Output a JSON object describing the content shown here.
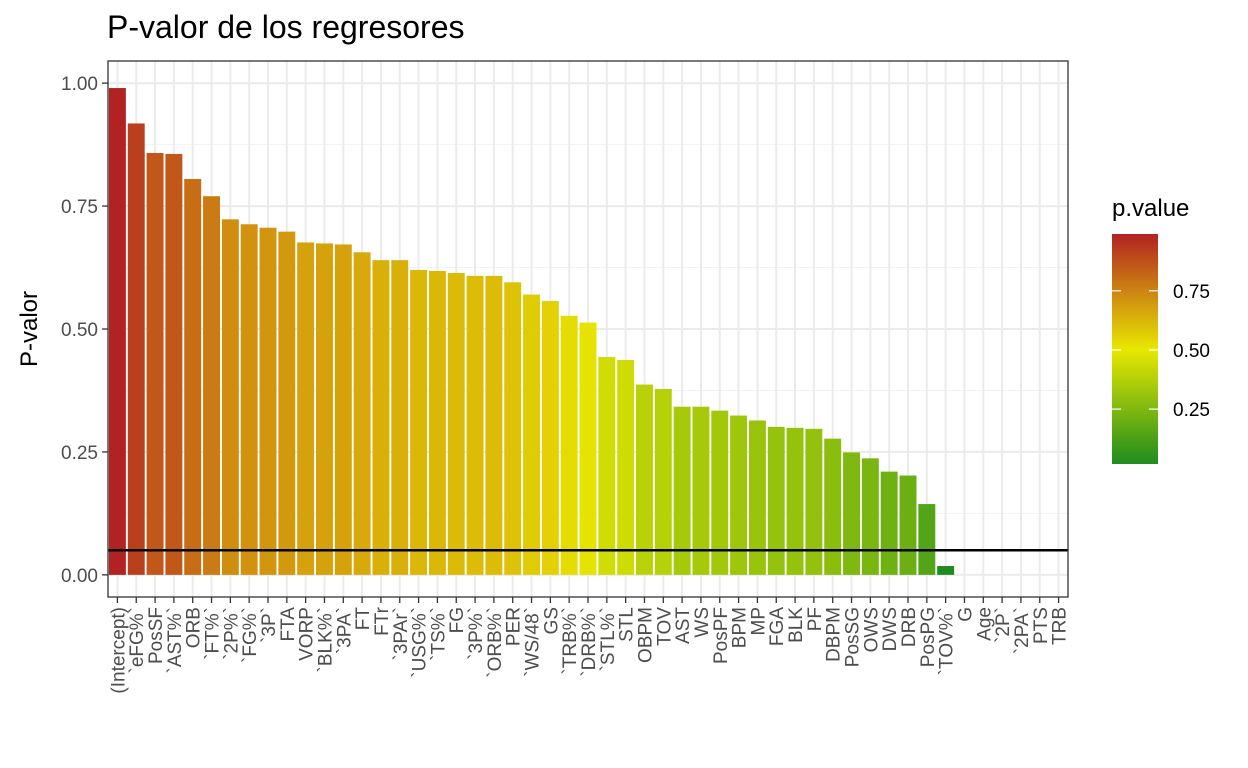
{
  "chart_data": {
    "type": "bar",
    "title": "P-valor de los regresores",
    "xlabel": "",
    "ylabel": "P-valor",
    "ylim": [
      -0.045,
      1.045
    ],
    "yticks": [
      0.0,
      0.25,
      0.5,
      0.75,
      1.0
    ],
    "ytick_labels": [
      "0.00",
      "0.25",
      "0.50",
      "0.75",
      "1.00"
    ],
    "grid": true,
    "reference_line": 0.05,
    "categories": [
      "(Intercept)",
      "`eFG%`",
      "PosSF",
      "`AST%`",
      "ORB",
      "`FT%`",
      "`2P%`",
      "`FG%`",
      "`3P`",
      "FTA",
      "VORP",
      "`BLK%`",
      "`3PA`",
      "FT",
      "FTr",
      "`3PAr`",
      "`USG%`",
      "`TS%`",
      "FG",
      "`3P%`",
      "`ORB%`",
      "PER",
      "`WS/48`",
      "GS",
      "`TRB%`",
      "`DRB%`",
      "`STL%`",
      "STL",
      "OBPM",
      "TOV",
      "AST",
      "WS",
      "PosPF",
      "BPM",
      "MP",
      "FGA",
      "BLK",
      "PF",
      "DBPM",
      "PosSG",
      "OWS",
      "DWS",
      "DRB",
      "PosPG",
      "`TOV%`",
      "G",
      "Age",
      "`2P`",
      "`2PA`",
      "PTS",
      "TRB"
    ],
    "values": [
      0.99,
      0.918,
      0.858,
      0.856,
      0.805,
      0.77,
      0.723,
      0.713,
      0.706,
      0.698,
      0.676,
      0.674,
      0.672,
      0.656,
      0.64,
      0.64,
      0.62,
      0.618,
      0.614,
      0.608,
      0.608,
      0.595,
      0.57,
      0.557,
      0.527,
      0.513,
      0.443,
      0.437,
      0.387,
      0.378,
      0.342,
      0.342,
      0.334,
      0.324,
      0.314,
      0.301,
      0.299,
      0.297,
      0.277,
      0.249,
      0.237,
      0.21,
      0.202,
      0.144,
      0.018,
      null,
      null,
      null,
      null,
      null,
      null
    ],
    "legend": {
      "title": "p.value",
      "position": "right",
      "ticks": [
        0.25,
        0.5,
        0.75
      ],
      "tick_labels": [
        "0.25",
        "0.50",
        "0.75"
      ],
      "range": [
        0.018,
        0.99
      ],
      "colors": {
        "low": "#1e8c1e",
        "mid": "#e8e800",
        "high": "#b22222"
      },
      "midpoint": 0.5
    },
    "line_color": "#000000"
  }
}
